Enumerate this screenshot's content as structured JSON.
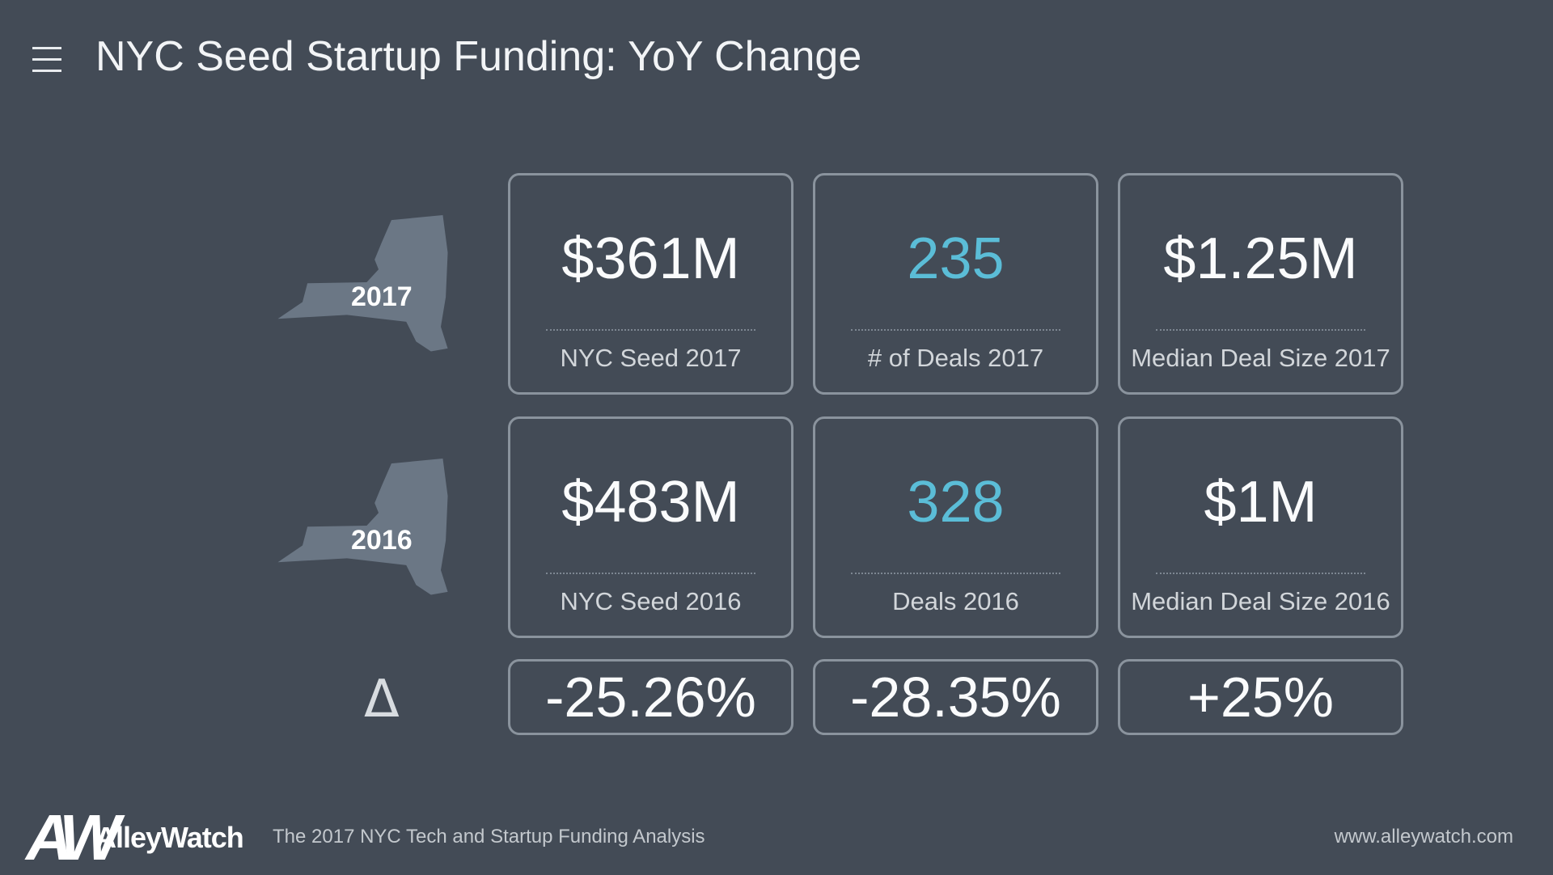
{
  "header": {
    "title": "NYC Seed Startup Funding: YoY Change"
  },
  "rows": [
    {
      "year": "2017",
      "cards": [
        {
          "value": "$361M",
          "label": "NYC Seed 2017",
          "accent": false
        },
        {
          "value": "235",
          "label": "# of Deals 2017",
          "accent": true
        },
        {
          "value": "$1.25M",
          "label": "Median Deal Size 2017",
          "accent": false
        }
      ]
    },
    {
      "year": "2016",
      "cards": [
        {
          "value": "$483M",
          "label": "NYC Seed 2016",
          "accent": false
        },
        {
          "value": "328",
          "label": "Deals 2016",
          "accent": true
        },
        {
          "value": "$1M",
          "label": "Median Deal Size 2016",
          "accent": false
        }
      ]
    }
  ],
  "delta": {
    "symbol": "Δ",
    "values": [
      "-25.26%",
      "-28.35%",
      "+25%"
    ]
  },
  "footer": {
    "logo_mark": "AW",
    "brand": "AlleyWatch",
    "subtitle": "The 2017 NYC Tech and Startup Funding Analysis",
    "url": "www.alleywatch.com"
  }
}
